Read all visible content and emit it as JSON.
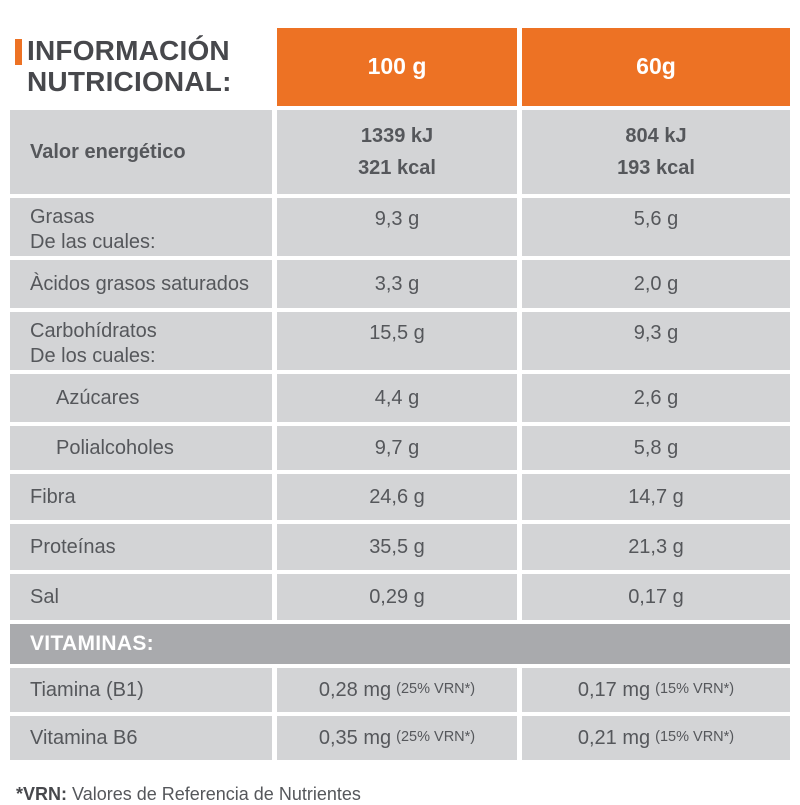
{
  "title": {
    "line1": "INFORMACIÓN",
    "line2": "NUTRICIONAL:"
  },
  "header": {
    "col_100g": "100 g",
    "col_60g": "60g"
  },
  "colors": {
    "accent_orange": "#ed7224",
    "row_gray": "#d3d4d6",
    "banner_gray": "#a9aaad",
    "text_dark": "#47484c",
    "text_body": "#55575b"
  },
  "energy_row": {
    "label": "Valor energético",
    "per100_kj": "1339 kJ",
    "per100_kcal": "321 kcal",
    "per60_kj": "804 kJ",
    "per60_kcal": "193 kcal"
  },
  "rows": [
    {
      "label": "Grasas",
      "sublabel": "De las cuales:",
      "per100": "9,3 g",
      "per60": "5,6 g"
    },
    {
      "label": "Àcidos grasos saturados",
      "per100": "3,3 g",
      "per60": "2,0 g"
    },
    {
      "label": "Carbohídratos",
      "sublabel": "De los cuales:",
      "per100": "15,5 g",
      "per60": "9,3 g"
    },
    {
      "label": "Azúcares",
      "per100": "4,4 g",
      "per60": "2,6 g"
    },
    {
      "label": "Polialcoholes",
      "per100": "9,7 g",
      "per60": "5,8 g"
    },
    {
      "label": "Fibra",
      "per100": "24,6 g",
      "per60": "14,7 g"
    },
    {
      "label": "Proteínas",
      "per100": "35,5 g",
      "per60": "21,3 g"
    },
    {
      "label": "Sal",
      "per100": "0,29 g",
      "per60": "0,17 g"
    }
  ],
  "vitamins": {
    "section_label": "VITAMINAS:",
    "rows": [
      {
        "label": "Tiamina (B1)",
        "per100": "0,28 mg",
        "per100_note": "(25% VRN*)",
        "per60": "0,17 mg",
        "per60_note": "(15% VRN*)"
      },
      {
        "label": "Vitamina B6",
        "per100": "0,35 mg",
        "per100_note": "(25% VRN*)",
        "per60": "0,21 mg",
        "per60_note": "(15% VRN*)"
      }
    ]
  },
  "footnote": {
    "bold": "*VRN:",
    "text": "Valores de Referencia de Nutrientes"
  }
}
